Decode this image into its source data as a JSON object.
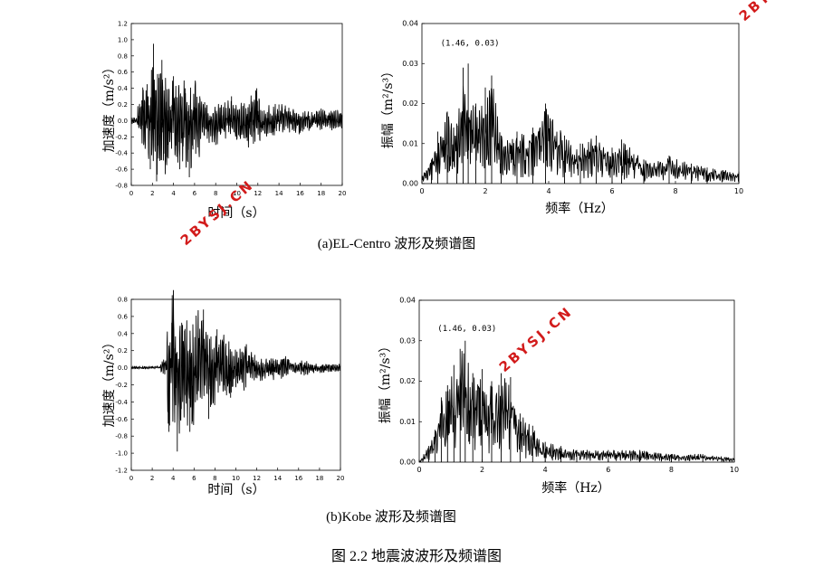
{
  "chart_data": [
    {
      "type": "line",
      "ylabel": "加速度（m/s²）",
      "xlabel": "时间（s）",
      "xlim": [
        0,
        20
      ],
      "ylim": [
        -0.8,
        1.2
      ],
      "xticks": [
        0,
        2,
        4,
        6,
        8,
        10,
        12,
        14,
        16,
        18,
        20
      ],
      "yticks": [
        -0.8,
        -0.6,
        -0.4,
        -0.2,
        0.0,
        0.2,
        0.4,
        0.6,
        0.8,
        1.0,
        1.2
      ],
      "peaks": [
        {
          "x": 0.0,
          "y": 0.0
        },
        {
          "x": 0.6,
          "y": -0.05
        },
        {
          "x": 1.0,
          "y": 0.25
        },
        {
          "x": 1.5,
          "y": 0.45
        },
        {
          "x": 1.8,
          "y": -0.6
        },
        {
          "x": 2.1,
          "y": 0.95
        },
        {
          "x": 2.4,
          "y": -0.75
        },
        {
          "x": 2.9,
          "y": 0.75
        },
        {
          "x": 3.4,
          "y": -0.45
        },
        {
          "x": 4.0,
          "y": 0.55
        },
        {
          "x": 4.6,
          "y": -0.6
        },
        {
          "x": 5.1,
          "y": 0.4
        },
        {
          "x": 5.5,
          "y": -0.7
        },
        {
          "x": 6.5,
          "y": 0.3
        },
        {
          "x": 8.0,
          "y": -0.3
        },
        {
          "x": 9.5,
          "y": 0.3
        },
        {
          "x": 11.0,
          "y": -0.25
        },
        {
          "x": 11.9,
          "y": 0.4
        },
        {
          "x": 12.2,
          "y": -0.25
        },
        {
          "x": 14.0,
          "y": 0.2
        },
        {
          "x": 16.0,
          "y": -0.15
        },
        {
          "x": 18.0,
          "y": 0.15
        },
        {
          "x": 20.0,
          "y": 0.0
        }
      ]
    },
    {
      "type": "line",
      "ylabel": "振幅（m²/s³）",
      "xlabel": "频率（Hz）",
      "xlim": [
        0,
        10
      ],
      "ylim": [
        0,
        0.04
      ],
      "xticks": [
        0,
        2,
        4,
        6,
        8,
        10
      ],
      "yticks": [
        0.0,
        0.01,
        0.02,
        0.03,
        0.04
      ],
      "annotation": {
        "text": "(1.46, 0.03)",
        "x": 1.46,
        "y": 0.03
      },
      "peaks": [
        {
          "x": 0.0,
          "y": 0.002
        },
        {
          "x": 0.3,
          "y": 0.006
        },
        {
          "x": 0.5,
          "y": 0.013
        },
        {
          "x": 0.8,
          "y": 0.018
        },
        {
          "x": 1.1,
          "y": 0.015
        },
        {
          "x": 1.3,
          "y": 0.029
        },
        {
          "x": 1.46,
          "y": 0.03
        },
        {
          "x": 1.7,
          "y": 0.02
        },
        {
          "x": 2.0,
          "y": 0.024
        },
        {
          "x": 2.2,
          "y": 0.027
        },
        {
          "x": 2.5,
          "y": 0.012
        },
        {
          "x": 3.0,
          "y": 0.013
        },
        {
          "x": 3.5,
          "y": 0.014
        },
        {
          "x": 3.9,
          "y": 0.02
        },
        {
          "x": 4.5,
          "y": 0.012
        },
        {
          "x": 5.0,
          "y": 0.01
        },
        {
          "x": 5.5,
          "y": 0.012
        },
        {
          "x": 6.0,
          "y": 0.009
        },
        {
          "x": 6.3,
          "y": 0.011
        },
        {
          "x": 7.0,
          "y": 0.006
        },
        {
          "x": 7.8,
          "y": 0.007
        },
        {
          "x": 8.5,
          "y": 0.005
        },
        {
          "x": 9.0,
          "y": 0.004
        },
        {
          "x": 10.0,
          "y": 0.003
        }
      ]
    },
    {
      "type": "line",
      "ylabel": "加速度（m/s²）",
      "xlabel": "时间（s）",
      "xlim": [
        0,
        20
      ],
      "ylim": [
        -1.2,
        0.8
      ],
      "xticks": [
        0,
        2,
        4,
        6,
        8,
        10,
        12,
        14,
        16,
        18,
        20
      ],
      "yticks": [
        -1.2,
        -1.0,
        -0.8,
        -0.6,
        -0.4,
        -0.2,
        0.0,
        0.2,
        0.4,
        0.6,
        0.8
      ],
      "peaks": [
        {
          "x": 0.0,
          "y": 0.0
        },
        {
          "x": 2.8,
          "y": 0.02
        },
        {
          "x": 3.4,
          "y": 0.1
        },
        {
          "x": 3.6,
          "y": -0.75
        },
        {
          "x": 3.9,
          "y": 0.55
        },
        {
          "x": 4.4,
          "y": -0.98
        },
        {
          "x": 4.9,
          "y": 0.5
        },
        {
          "x": 5.6,
          "y": -0.75
        },
        {
          "x": 6.4,
          "y": 0.5
        },
        {
          "x": 6.9,
          "y": 0.68
        },
        {
          "x": 7.4,
          "y": -0.6
        },
        {
          "x": 8.2,
          "y": 0.45
        },
        {
          "x": 9.5,
          "y": -0.35
        },
        {
          "x": 11.0,
          "y": 0.2
        },
        {
          "x": 12.5,
          "y": -0.15
        },
        {
          "x": 15.0,
          "y": 0.1
        },
        {
          "x": 17.0,
          "y": -0.06
        },
        {
          "x": 20.0,
          "y": 0.0
        }
      ]
    },
    {
      "type": "line",
      "ylabel": "振幅（m²/s³）",
      "xlabel": "频率（Hz）",
      "xlim": [
        0,
        10
      ],
      "ylim": [
        0,
        0.04
      ],
      "xticks": [
        0,
        2,
        4,
        6,
        8,
        10
      ],
      "yticks": [
        0.0,
        0.01,
        0.02,
        0.03,
        0.04
      ],
      "annotation": {
        "text": "(1.46, 0.03)",
        "x": 1.46,
        "y": 0.03
      },
      "peaks": [
        {
          "x": 0.0,
          "y": 0.0
        },
        {
          "x": 0.3,
          "y": 0.004
        },
        {
          "x": 0.5,
          "y": 0.008
        },
        {
          "x": 0.7,
          "y": 0.016
        },
        {
          "x": 0.9,
          "y": 0.019
        },
        {
          "x": 1.1,
          "y": 0.024
        },
        {
          "x": 1.3,
          "y": 0.028
        },
        {
          "x": 1.46,
          "y": 0.03
        },
        {
          "x": 1.7,
          "y": 0.022
        },
        {
          "x": 2.0,
          "y": 0.023
        },
        {
          "x": 2.3,
          "y": 0.02
        },
        {
          "x": 2.6,
          "y": 0.022
        },
        {
          "x": 2.9,
          "y": 0.021
        },
        {
          "x": 3.2,
          "y": 0.012
        },
        {
          "x": 3.6,
          "y": 0.009
        },
        {
          "x": 4.0,
          "y": 0.005
        },
        {
          "x": 4.5,
          "y": 0.004
        },
        {
          "x": 5.0,
          "y": 0.003
        },
        {
          "x": 6.0,
          "y": 0.003
        },
        {
          "x": 7.0,
          "y": 0.003
        },
        {
          "x": 8.0,
          "y": 0.002
        },
        {
          "x": 9.0,
          "y": 0.002
        },
        {
          "x": 10.0,
          "y": 0.001
        }
      ]
    }
  ],
  "captions": {
    "a": "(a)EL-Centro 波形及频谱图",
    "b": "(b)Kobe 波形及频谱图",
    "figure": "图 2.2 地震波波形及频谱图"
  },
  "watermark": "2BYSJ.CN",
  "colors": {
    "line": "#000000",
    "watermark": "#d21b1b"
  }
}
